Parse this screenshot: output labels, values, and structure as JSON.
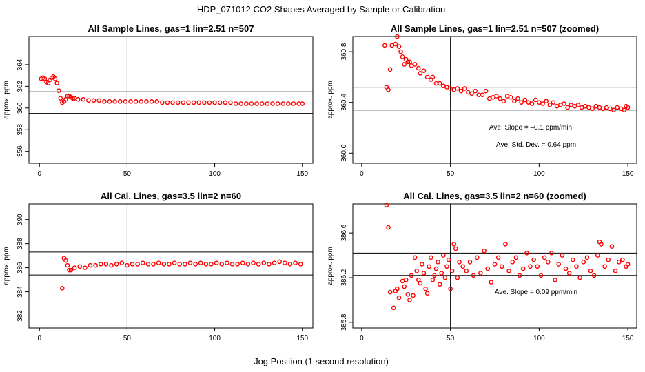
{
  "figure": {
    "title": "HDP_071012  CO2 Shapes Averaged by Sample or Calibration",
    "xlabel": "Jog Position (1 second resolution)",
    "colors": {
      "points": "#ff0000",
      "axes": "#000000",
      "background": "#ffffff"
    }
  },
  "chart_data": [
    {
      "type": "scatter",
      "title": "All Sample Lines, gas=1 lin=2.51 n=507",
      "xlabel": "",
      "ylabel": "approx. ppm",
      "xlim": [
        -6,
        156
      ],
      "ylim": [
        354.9,
        366.6
      ],
      "xticks": [
        "0",
        "50",
        "100",
        "150"
      ],
      "yticks": [
        "356",
        "358",
        "360",
        "362",
        "364"
      ],
      "vline": 50,
      "hlines": [
        361.5,
        359.5
      ],
      "annotations": [],
      "x": [
        1,
        2,
        3,
        4,
        5,
        6,
        7,
        8,
        9,
        10,
        11,
        12,
        13,
        14,
        15,
        16,
        17,
        18,
        19,
        20,
        22,
        25,
        28,
        31,
        34,
        37,
        40,
        43,
        46,
        49,
        52,
        55,
        58,
        61,
        64,
        67,
        70,
        73,
        76,
        79,
        82,
        85,
        88,
        91,
        94,
        97,
        100,
        103,
        106,
        109,
        112,
        115,
        118,
        121,
        124,
        127,
        130,
        133,
        136,
        139,
        142,
        145,
        148,
        150
      ],
      "y": [
        362.7,
        362.8,
        362.7,
        362.4,
        362.3,
        362.6,
        362.8,
        362.9,
        362.7,
        362.3,
        361.6,
        360.9,
        360.5,
        360.6,
        360.8,
        361.1,
        361.1,
        361.0,
        360.9,
        360.9,
        360.8,
        360.8,
        360.7,
        360.7,
        360.7,
        360.6,
        360.6,
        360.6,
        360.6,
        360.6,
        360.6,
        360.6,
        360.6,
        360.6,
        360.6,
        360.6,
        360.5,
        360.5,
        360.5,
        360.5,
        360.5,
        360.5,
        360.5,
        360.5,
        360.5,
        360.5,
        360.5,
        360.5,
        360.5,
        360.5,
        360.4,
        360.4,
        360.4,
        360.4,
        360.4,
        360.4,
        360.4,
        360.4,
        360.4,
        360.4,
        360.4,
        360.4,
        360.4,
        360.4
      ]
    },
    {
      "type": "scatter",
      "title": "All Sample Lines, gas=1 lin=2.51 n=507 (zoomed)",
      "xlabel": "",
      "ylabel": "approx. ppm",
      "xlim": [
        -5,
        155
      ],
      "ylim": [
        359.92,
        360.92
      ],
      "xticks": [
        "0",
        "50",
        "100",
        "150"
      ],
      "yticks": [
        "360.0",
        "360.4",
        "360.8"
      ],
      "vline": 50,
      "hlines": [
        360.52,
        360.34
      ],
      "annotations": [
        "Ave. Slope =  –0.1  ppm/min",
        "Ave. Std. Dev. =  0.64  ppm"
      ],
      "x": [
        13,
        14,
        15,
        16,
        17,
        19,
        20,
        21,
        22,
        23,
        24,
        25,
        26,
        27,
        28,
        30,
        32,
        33,
        35,
        37,
        39,
        40,
        42,
        44,
        46,
        48,
        50,
        52,
        54,
        56,
        58,
        60,
        62,
        64,
        66,
        68,
        70,
        72,
        74,
        76,
        78,
        80,
        82,
        84,
        86,
        88,
        90,
        92,
        94,
        96,
        98,
        100,
        102,
        104,
        106,
        108,
        110,
        112,
        114,
        116,
        118,
        120,
        122,
        124,
        126,
        128,
        130,
        132,
        134,
        136,
        138,
        140,
        142,
        144,
        146,
        148,
        149,
        150
      ],
      "y": [
        360.85,
        360.52,
        360.5,
        360.66,
        360.85,
        360.86,
        360.92,
        360.84,
        360.8,
        360.76,
        360.7,
        360.74,
        360.72,
        360.72,
        360.69,
        360.7,
        360.67,
        360.63,
        360.65,
        360.6,
        360.58,
        360.6,
        360.55,
        360.55,
        360.53,
        360.52,
        360.51,
        360.5,
        360.51,
        360.49,
        360.51,
        360.48,
        360.47,
        360.49,
        360.46,
        360.46,
        360.49,
        360.43,
        360.44,
        360.45,
        360.43,
        360.41,
        360.45,
        360.44,
        360.41,
        360.43,
        360.4,
        360.42,
        360.4,
        360.39,
        360.42,
        360.4,
        360.39,
        360.41,
        360.38,
        360.4,
        360.37,
        360.38,
        360.39,
        360.36,
        360.38,
        360.37,
        360.38,
        360.36,
        360.37,
        360.36,
        360.35,
        360.37,
        360.36,
        360.35,
        360.36,
        360.35,
        360.34,
        360.36,
        360.35,
        360.34,
        360.37,
        360.36
      ]
    },
    {
      "type": "scatter",
      "title": "All Cal. Lines, gas=3.5 lin=2 n=60",
      "xlabel": "",
      "ylabel": "approx. ppm",
      "xlim": [
        -6,
        156
      ],
      "ylim": [
        381.0,
        391.3
      ],
      "xticks": [
        "0",
        "50",
        "100",
        "150"
      ],
      "yticks": [
        "382",
        "384",
        "386",
        "388",
        "390"
      ],
      "vline": 50,
      "hlines": [
        387.3,
        385.4
      ],
      "annotations": [],
      "x": [
        13,
        14,
        15,
        16,
        17,
        18,
        20,
        23,
        26,
        29,
        32,
        35,
        38,
        41,
        44,
        47,
        50,
        53,
        56,
        59,
        62,
        65,
        68,
        71,
        74,
        77,
        80,
        83,
        86,
        89,
        92,
        95,
        98,
        101,
        104,
        107,
        110,
        113,
        116,
        119,
        122,
        125,
        128,
        131,
        134,
        137,
        140,
        143,
        146,
        149
      ],
      "y": [
        384.3,
        386.8,
        386.6,
        386.2,
        385.8,
        385.8,
        386.0,
        386.1,
        386.0,
        386.2,
        386.2,
        386.3,
        386.3,
        386.2,
        386.3,
        386.4,
        386.2,
        386.3,
        386.3,
        386.4,
        386.3,
        386.3,
        386.4,
        386.3,
        386.3,
        386.4,
        386.3,
        386.3,
        386.4,
        386.3,
        386.4,
        386.3,
        386.3,
        386.4,
        386.3,
        386.4,
        386.3,
        386.3,
        386.4,
        386.3,
        386.4,
        386.3,
        386.4,
        386.3,
        386.4,
        386.5,
        386.4,
        386.3,
        386.4,
        386.3
      ]
    },
    {
      "type": "scatter",
      "title": "All Cal. Lines, gas=3.5 lin=2 n=60 (zoomed)",
      "xlabel": "",
      "ylabel": "approx. ppm",
      "xlim": [
        -5,
        155
      ],
      "ylim": [
        385.75,
        386.86
      ],
      "xticks": [
        "0",
        "50",
        "100",
        "150"
      ],
      "yticks": [
        "385.8",
        "386.2",
        "386.6"
      ],
      "vline": 50,
      "hlines": [
        386.42,
        386.22
      ],
      "annotations": [
        "Ave. Slope =  0.09  ppm/min"
      ],
      "x": [
        14,
        15,
        16,
        18,
        19,
        20,
        21,
        23,
        24,
        25,
        26,
        27,
        28,
        29,
        30,
        31,
        32,
        33,
        34,
        35,
        36,
        37,
        38,
        39,
        40,
        41,
        42,
        43,
        44,
        45,
        46,
        47,
        48,
        49,
        50,
        51,
        52,
        53,
        54,
        55,
        57,
        59,
        61,
        63,
        65,
        67,
        69,
        71,
        73,
        75,
        77,
        79,
        81,
        83,
        85,
        87,
        89,
        91,
        93,
        95,
        97,
        99,
        101,
        103,
        105,
        107,
        109,
        111,
        113,
        115,
        117,
        119,
        121,
        123,
        125,
        127,
        129,
        131,
        133,
        134,
        135,
        137,
        139,
        141,
        143,
        145,
        147,
        149,
        150
      ],
      "y": [
        386.85,
        386.65,
        386.07,
        385.93,
        386.08,
        386.1,
        386.02,
        386.17,
        386.12,
        386.18,
        386.05,
        386.0,
        386.22,
        386.04,
        386.38,
        386.26,
        386.18,
        386.15,
        386.32,
        386.24,
        386.1,
        386.06,
        386.3,
        386.38,
        386.18,
        386.22,
        386.28,
        386.34,
        386.14,
        386.24,
        386.4,
        386.2,
        386.3,
        386.36,
        386.1,
        386.26,
        386.5,
        386.46,
        386.2,
        386.34,
        386.3,
        386.26,
        386.34,
        386.22,
        386.38,
        386.24,
        386.44,
        386.28,
        386.16,
        386.32,
        386.38,
        386.3,
        386.5,
        386.26,
        386.34,
        386.38,
        386.22,
        386.28,
        386.42,
        386.3,
        386.36,
        386.3,
        386.22,
        386.38,
        386.34,
        386.42,
        386.18,
        386.32,
        386.4,
        386.28,
        386.24,
        386.36,
        386.3,
        386.2,
        386.34,
        386.38,
        386.26,
        386.22,
        386.4,
        386.52,
        386.5,
        386.3,
        386.36,
        386.48,
        386.26,
        386.34,
        386.36,
        386.3,
        386.32
      ]
    }
  ]
}
